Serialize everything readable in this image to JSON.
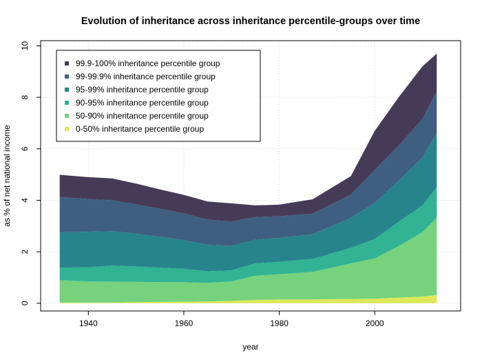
{
  "chart_data": {
    "type": "area",
    "stacked": true,
    "title": "Evolution of inheritance across inheritance percentile-groups over time",
    "xlabel": "year",
    "ylabel": "as % of net national income",
    "xlim": [
      1930,
      2018
    ],
    "ylim": [
      -0.3,
      10.2
    ],
    "x_ticks": [
      1940,
      1960,
      1980,
      2000
    ],
    "y_ticks": [
      0,
      2,
      4,
      6,
      8,
      10
    ],
    "grid": true,
    "legend_position": "top-left",
    "x": [
      1934,
      1940,
      1945,
      1950,
      1955,
      1960,
      1965,
      1970,
      1975,
      1980,
      1987,
      1995,
      2000,
      2005,
      2010,
      2013
    ],
    "series": [
      {
        "name": "0-50% inheritance percentile group",
        "color": "#dce85a",
        "values": [
          0.03,
          0.03,
          0.03,
          0.04,
          0.05,
          0.06,
          0.07,
          0.09,
          0.13,
          0.15,
          0.15,
          0.17,
          0.18,
          0.22,
          0.26,
          0.32
        ]
      },
      {
        "name": "50-90% inheritance percentile group",
        "color": "#76d27d",
        "values": [
          0.87,
          0.82,
          0.81,
          0.79,
          0.77,
          0.76,
          0.72,
          0.76,
          0.94,
          0.98,
          1.07,
          1.38,
          1.56,
          2.0,
          2.5,
          3.0
        ]
      },
      {
        "name": "90-95% inheritance percentile group",
        "color": "#31b394",
        "values": [
          0.48,
          0.55,
          0.62,
          0.6,
          0.56,
          0.52,
          0.45,
          0.43,
          0.48,
          0.48,
          0.5,
          0.6,
          0.76,
          0.94,
          1.04,
          1.2
        ]
      },
      {
        "name": "95-99% inheritance percentile group",
        "color": "#27848c",
        "values": [
          1.37,
          1.38,
          1.34,
          1.27,
          1.2,
          1.12,
          1.03,
          0.95,
          0.92,
          0.93,
          0.96,
          1.17,
          1.4,
          1.6,
          1.86,
          2.1
        ]
      },
      {
        "name": "99-99.9% inheritance percentile group",
        "color": "#3e5f80",
        "values": [
          1.38,
          1.27,
          1.2,
          1.14,
          1.09,
          1.03,
          0.98,
          0.95,
          0.88,
          0.84,
          0.8,
          0.9,
          1.28,
          1.36,
          1.5,
          1.6
        ]
      },
      {
        "name": "99.9-100% inheritance percentile group",
        "color": "#463b57",
        "values": [
          0.86,
          0.85,
          0.85,
          0.81,
          0.75,
          0.72,
          0.7,
          0.7,
          0.45,
          0.45,
          0.56,
          0.72,
          1.52,
          1.88,
          2.04,
          1.48
        ]
      }
    ]
  }
}
